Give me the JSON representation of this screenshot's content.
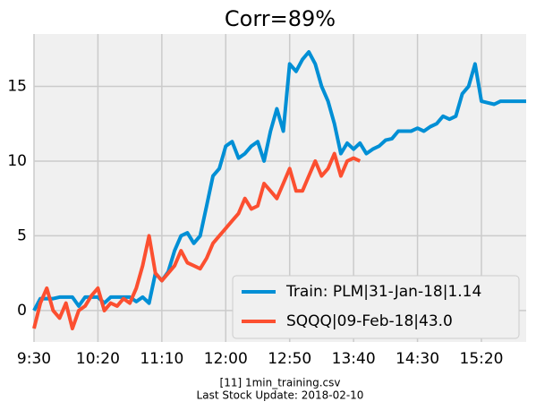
{
  "chart_data": {
    "type": "line",
    "title": "Corr=89%",
    "xlabel": [
      "[11] 1min_training.csv",
      "Last Stock Update: 2018-02-10"
    ],
    "x": [
      570,
      575,
      580,
      585,
      590,
      595,
      600,
      605,
      610,
      615,
      620,
      625,
      630,
      635,
      640,
      645,
      650,
      655,
      660,
      665,
      670,
      675,
      680,
      685,
      690,
      695,
      700,
      705,
      710,
      715,
      720,
      725,
      730,
      735,
      740,
      745,
      750,
      755,
      760,
      765,
      770,
      775,
      780,
      785,
      790,
      795,
      800,
      805,
      810,
      815,
      820,
      825,
      830,
      835,
      840,
      845,
      850,
      855,
      860,
      865,
      870,
      875,
      880,
      885,
      890,
      895,
      900,
      905,
      910,
      915,
      920,
      925,
      930,
      935,
      940,
      945,
      950,
      955
    ],
    "xlim": [
      570,
      955
    ],
    "xticks": [
      {
        "value": 570,
        "label": "9:30"
      },
      {
        "value": 620,
        "label": "10:20"
      },
      {
        "value": 670,
        "label": "11:10"
      },
      {
        "value": 720,
        "label": "12:00"
      },
      {
        "value": 770,
        "label": "12:50"
      },
      {
        "value": 820,
        "label": "13:40"
      },
      {
        "value": 870,
        "label": "14:30"
      },
      {
        "value": 920,
        "label": "15:20"
      }
    ],
    "ylim": [
      -2.1,
      18.5
    ],
    "yticks": [
      0,
      5,
      10,
      15
    ],
    "grid": true,
    "legend": "lower right",
    "series": [
      {
        "name": "Train: PLM|31-Jan-18|1.14",
        "color": "#008fd5",
        "values": [
          0,
          0.8,
          0.8,
          0.8,
          0.9,
          0.9,
          0.9,
          0.3,
          0.9,
          0.9,
          0.9,
          0.5,
          0.9,
          0.9,
          0.9,
          0.9,
          0.6,
          0.9,
          0.5,
          2.5,
          2.0,
          2.6,
          4.0,
          5.0,
          5.2,
          4.5,
          5.0,
          7.0,
          9.0,
          9.5,
          11.0,
          11.3,
          10.2,
          10.5,
          11.0,
          11.3,
          10.0,
          12.0,
          13.5,
          12.0,
          16.5,
          16.0,
          16.8,
          17.3,
          16.5,
          15.0,
          14.0,
          12.5,
          10.5,
          11.2,
          10.8,
          11.2,
          10.5,
          10.8,
          11.0,
          11.4,
          11.5,
          12.0,
          12.0,
          12.0,
          12.2,
          12.0,
          12.3,
          12.5,
          13.0,
          12.8,
          13.0,
          14.5,
          15.0,
          16.5,
          14.0,
          13.9,
          13.8,
          14.0,
          14.0,
          14.0,
          14.0,
          14.0
        ]
      },
      {
        "name": "SQQQ|09-Feb-18|43.0",
        "color": "#fc4f30",
        "values": [
          -1.2,
          0.5,
          1.5,
          0.0,
          -0.5,
          0.5,
          -1.2,
          0.0,
          0.3,
          1.0,
          1.5,
          0.0,
          0.5,
          0.3,
          0.8,
          0.5,
          1.5,
          3.0,
          5.0,
          2.5,
          2.0,
          2.5,
          3.0,
          4.0,
          3.2,
          3.0,
          2.8,
          3.5,
          4.5,
          5.0,
          5.5,
          6.0,
          6.5,
          7.5,
          6.8,
          7.0,
          8.5,
          8.0,
          7.5,
          8.5,
          9.5,
          8.0,
          8.0,
          9.0,
          10.0,
          9.0,
          9.5,
          10.5,
          9.0,
          10.0,
          10.2,
          10.0,
          null,
          null,
          null,
          null,
          null,
          null,
          null,
          null,
          null,
          null,
          null,
          null,
          null,
          null,
          null,
          null,
          null,
          null,
          null,
          null,
          null,
          null,
          null,
          null,
          null,
          null
        ]
      }
    ]
  }
}
